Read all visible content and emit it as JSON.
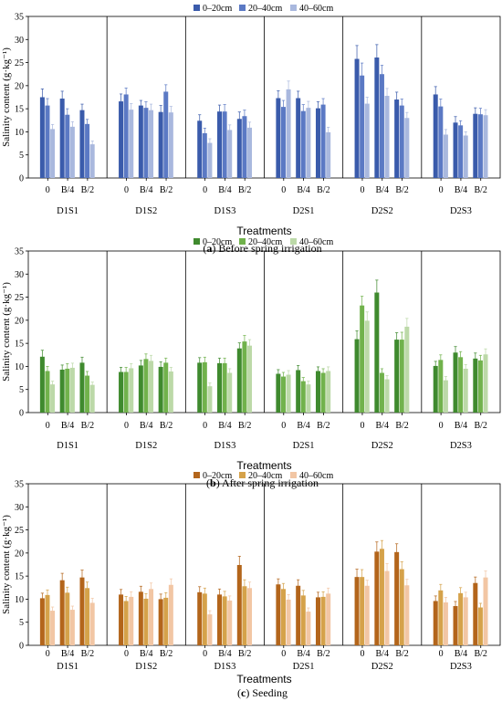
{
  "chart_data": [
    {
      "type": "bar",
      "panel_letter": "a",
      "caption": "Before spring irrigation",
      "ylabel": "Salinity content (g·kg⁻¹)",
      "xlabel": "Treatments",
      "ylim": [
        0,
        35
      ],
      "yticks": [
        0,
        5,
        10,
        15,
        20,
        25,
        30,
        35
      ],
      "groups": [
        "D1S1",
        "D1S2",
        "D1S3",
        "D2S1",
        "D2S2",
        "D2S3"
      ],
      "subcategories": [
        "0",
        "B/4",
        "B/2"
      ],
      "legend": {
        "position": "top",
        "entries": [
          "0–20cm",
          "20–40cm",
          "40–60cm"
        ]
      },
      "colors": [
        "#3a5bab",
        "#5b79c4",
        "#a9b8de"
      ],
      "series": [
        {
          "name": "0–20cm",
          "values": [
            [
              17.5,
              17.2,
              14.7
            ],
            [
              16.6,
              15.7,
              14.3
            ],
            [
              12.4,
              14.4,
              12.8
            ],
            [
              17.3,
              17.3,
              15.1
            ],
            [
              25.8,
              26.1,
              17.0
            ],
            [
              18.1,
              12.0,
              13.9
            ]
          ]
        },
        {
          "name": "20–40cm",
          "values": [
            [
              15.7,
              13.7,
              11.7
            ],
            [
              18.1,
              15.2,
              18.7
            ],
            [
              9.7,
              14.4,
              13.4
            ],
            [
              15.4,
              14.5,
              15.9
            ],
            [
              22.2,
              22.5,
              15.7
            ],
            [
              15.5,
              11.4,
              13.8
            ]
          ]
        },
        {
          "name": "40–60cm",
          "values": [
            [
              10.6,
              11.1,
              7.3
            ],
            [
              14.8,
              14.7,
              14.2
            ],
            [
              7.6,
              10.4,
              10.9
            ],
            [
              19.2,
              15.2,
              9.9
            ],
            [
              16.1,
              17.8,
              13.0
            ],
            [
              9.4,
              9.2,
              13.6
            ]
          ]
        }
      ],
      "errors": [
        [
          [
            1.8,
            1.6,
            1.3
          ],
          [
            1.6,
            1.1,
            1.4
          ],
          [
            1.3,
            1.4,
            1.5
          ],
          [
            1.6,
            1.5,
            1.4
          ],
          [
            2.9,
            2.8,
            1.6
          ],
          [
            1.7,
            1.3,
            1.3
          ]
        ],
        [
          [
            1.5,
            1.3,
            1.0
          ],
          [
            1.4,
            1.3,
            1.5
          ],
          [
            1.1,
            1.5,
            1.3
          ],
          [
            1.4,
            1.4,
            1.3
          ],
          [
            2.7,
            1.9,
            1.4
          ],
          [
            1.6,
            1.0,
            1.3
          ]
        ],
        [
          [
            1.0,
            1.1,
            0.7
          ],
          [
            1.3,
            1.3,
            1.3
          ],
          [
            0.9,
            1.1,
            1.2
          ],
          [
            1.8,
            1.4,
            1.1
          ],
          [
            1.4,
            1.6,
            1.2
          ],
          [
            1.1,
            0.8,
            1.2
          ]
        ]
      ]
    },
    {
      "type": "bar",
      "panel_letter": "b",
      "caption": "After spring irrigation",
      "ylabel": "Salinity content (g·kg⁻¹)",
      "xlabel": "Treatments",
      "ylim": [
        0,
        35
      ],
      "yticks": [
        0,
        5,
        10,
        15,
        20,
        25,
        30,
        35
      ],
      "groups": [
        "D1S1",
        "D1S2",
        "D1S3",
        "D2S1",
        "D2S2",
        "D2S3"
      ],
      "subcategories": [
        "0",
        "B/4",
        "B/2"
      ],
      "legend": {
        "position": "top",
        "entries": [
          "0–20cm",
          "20–40cm",
          "40–60cm"
        ]
      },
      "colors": [
        "#3f8a2e",
        "#71b24c",
        "#bcd9a8"
      ],
      "series": [
        {
          "name": "0–20cm",
          "values": [
            [
              12.1,
              9.3,
              10.8
            ],
            [
              8.8,
              10.2,
              9.9
            ],
            [
              10.8,
              10.7,
              13.9
            ],
            [
              8.4,
              9.2,
              9.0
            ],
            [
              15.9,
              26.0,
              15.8
            ],
            [
              10.1,
              13.0,
              11.7
            ]
          ]
        },
        {
          "name": "20–40cm",
          "values": [
            [
              9.0,
              9.5,
              8.0
            ],
            [
              8.8,
              11.6,
              10.8
            ],
            [
              10.9,
              10.7,
              15.4
            ],
            [
              7.8,
              6.8,
              8.6
            ],
            [
              23.2,
              8.6,
              15.8
            ],
            [
              11.4,
              12.0,
              11.3
            ]
          ]
        },
        {
          "name": "40–60cm",
          "values": [
            [
              6.1,
              9.7,
              6.0
            ],
            [
              9.6,
              11.2,
              8.9
            ],
            [
              5.7,
              8.6,
              14.5
            ],
            [
              8.2,
              6.1,
              9.0
            ],
            [
              19.9,
              7.2,
              18.6
            ],
            [
              7.0,
              9.5,
              12.6
            ]
          ]
        }
      ],
      "errors": [
        [
          [
            1.4,
            1.0,
            1.2
          ],
          [
            1.0,
            1.1,
            1.1
          ],
          [
            1.1,
            1.1,
            1.2
          ],
          [
            0.9,
            1.0,
            0.9
          ],
          [
            1.8,
            2.7,
            1.5
          ],
          [
            1.0,
            1.3,
            1.2
          ]
        ],
        [
          [
            1.0,
            1.1,
            0.9
          ],
          [
            1.0,
            1.1,
            1.0
          ],
          [
            1.1,
            1.1,
            1.3
          ],
          [
            0.9,
            0.8,
            0.9
          ],
          [
            2.0,
            0.9,
            1.6
          ],
          [
            1.1,
            1.2,
            1.1
          ]
        ],
        [
          [
            0.7,
            1.0,
            0.6
          ],
          [
            1.0,
            1.2,
            0.9
          ],
          [
            0.7,
            0.9,
            1.3
          ],
          [
            0.9,
            0.7,
            0.9
          ],
          [
            1.9,
            0.8,
            1.8
          ],
          [
            0.8,
            0.9,
            1.2
          ]
        ]
      ]
    },
    {
      "type": "bar",
      "panel_letter": "c",
      "caption": "Seeding",
      "ylabel": "Salinity content (g·kg⁻¹)",
      "xlabel": "Treatments",
      "ylim": [
        0,
        35
      ],
      "yticks": [
        0,
        5,
        10,
        15,
        20,
        25,
        30,
        35
      ],
      "groups": [
        "D1S1",
        "D1S2",
        "D1S3",
        "D2S1",
        "D2S2",
        "D2S3"
      ],
      "subcategories": [
        "0",
        "B/4",
        "B/2"
      ],
      "legend": {
        "position": "top",
        "entries": [
          "0–20cm",
          "20–40cm",
          "40–60cm"
        ]
      },
      "colors": [
        "#b3651b",
        "#d5a24a",
        "#f2c6a4"
      ],
      "series": [
        {
          "name": "0–20cm",
          "values": [
            [
              10.2,
              14.1,
              14.7
            ],
            [
              11.0,
              11.6,
              10.0
            ],
            [
              11.5,
              11.0,
              17.4
            ],
            [
              13.2,
              12.9,
              10.4
            ],
            [
              14.8,
              20.3,
              20.2
            ],
            [
              9.6,
              8.5,
              13.5
            ]
          ]
        },
        {
          "name": "20–40cm",
          "values": [
            [
              10.9,
              11.4,
              12.4
            ],
            [
              9.6,
              10.1,
              10.3
            ],
            [
              11.2,
              10.6,
              12.8
            ],
            [
              12.2,
              10.8,
              10.5
            ],
            [
              14.8,
              20.9,
              16.5
            ],
            [
              11.9,
              11.3,
              8.2
            ]
          ]
        },
        {
          "name": "40–60cm",
          "values": [
            [
              7.5,
              7.7,
              9.2
            ],
            [
              10.5,
              12.2,
              13.1
            ],
            [
              6.7,
              9.7,
              12.4
            ],
            [
              9.9,
              7.3,
              11.2
            ],
            [
              12.9,
              16.1,
              13.0
            ],
            [
              9.3,
              10.4,
              14.7
            ]
          ]
        }
      ],
      "errors": [
        [
          [
            1.1,
            1.5,
            1.6
          ],
          [
            1.1,
            1.2,
            1.1
          ],
          [
            1.2,
            1.2,
            1.9
          ],
          [
            1.2,
            1.3,
            1.1
          ],
          [
            1.7,
            2.1,
            1.8
          ],
          [
            1.1,
            1.0,
            1.3
          ]
        ],
        [
          [
            1.1,
            1.2,
            1.3
          ],
          [
            1.0,
            1.1,
            1.1
          ],
          [
            1.2,
            1.1,
            1.4
          ],
          [
            1.2,
            1.1,
            1.1
          ],
          [
            1.6,
            1.8,
            1.6
          ],
          [
            1.3,
            1.2,
            0.9
          ]
        ],
        [
          [
            0.8,
            0.8,
            1.0
          ],
          [
            1.1,
            1.3,
            1.3
          ],
          [
            0.8,
            1.0,
            1.3
          ],
          [
            1.1,
            0.8,
            1.2
          ],
          [
            1.2,
            1.6,
            1.3
          ],
          [
            1.1,
            1.1,
            1.4
          ]
        ]
      ]
    }
  ]
}
